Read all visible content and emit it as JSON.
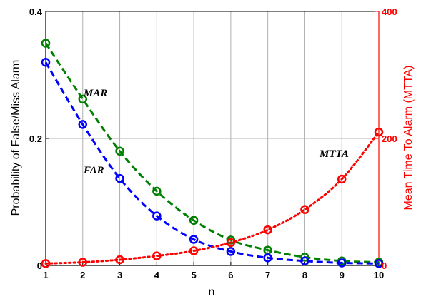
{
  "chart_data": {
    "type": "line",
    "x": [
      1,
      2,
      3,
      4,
      5,
      6,
      7,
      8,
      9,
      10
    ],
    "xlabel": "n",
    "xlim": [
      1,
      10
    ],
    "xticks": [
      "1",
      "2",
      "3",
      "4",
      "5",
      "6",
      "7",
      "8",
      "9",
      "10"
    ],
    "left_axis": {
      "ylabel": "Probability of False/Miss Alarm",
      "ylim": [
        0,
        0.4
      ],
      "yticks": [
        "0",
        "0.2",
        "0.4"
      ],
      "tick_values": [
        0,
        0.2,
        0.4
      ],
      "color": "#000000"
    },
    "right_axis": {
      "ylabel": "Mean Time To Alarm (MTTA)",
      "ylim": [
        0,
        400
      ],
      "yticks": [
        "0",
        "200",
        "400"
      ],
      "tick_values": [
        0,
        200,
        400
      ],
      "color": "#ff0000"
    },
    "grid": true,
    "series": [
      {
        "name": "MAR",
        "axis": "left",
        "color": "#008000",
        "values": [
          0.35,
          0.262,
          0.18,
          0.117,
          0.071,
          0.04,
          0.024,
          0.013,
          0.007,
          0.005
        ]
      },
      {
        "name": "FAR",
        "axis": "left",
        "color": "#0000ff",
        "values": [
          0.32,
          0.222,
          0.137,
          0.078,
          0.041,
          0.022,
          0.012,
          0.007,
          0.004,
          0.003
        ]
      },
      {
        "name": "MTTA",
        "axis": "right",
        "color": "#ff0000",
        "values": [
          3,
          5,
          9,
          15,
          23,
          36,
          56,
          88,
          136,
          210
        ]
      }
    ]
  }
}
